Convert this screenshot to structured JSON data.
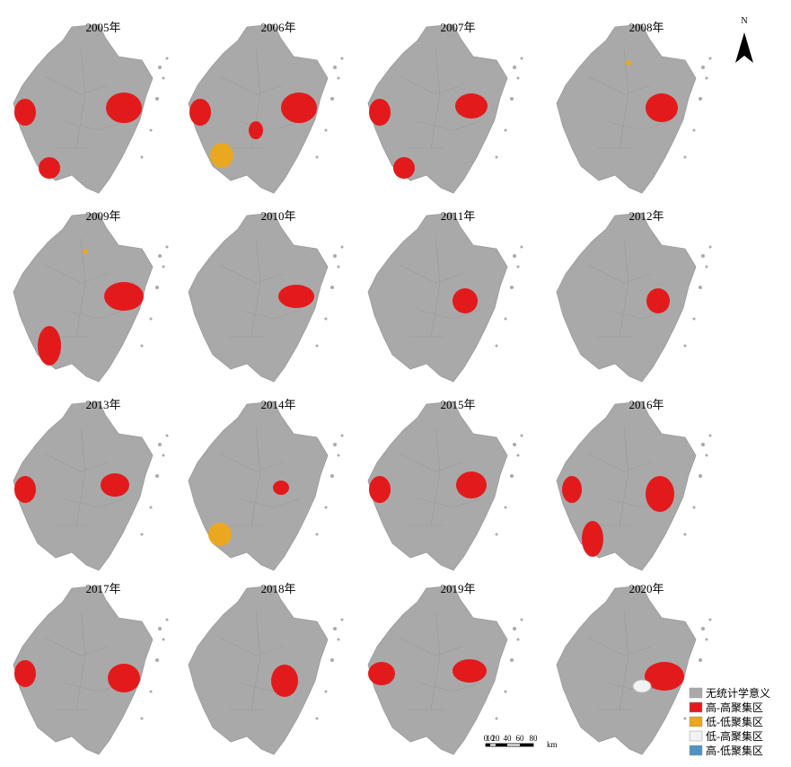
{
  "panels": [
    {
      "title": "2005年"
    },
    {
      "title": "2006年"
    },
    {
      "title": "2007年"
    },
    {
      "title": "2008年"
    },
    {
      "title": "2009年"
    },
    {
      "title": "2010年"
    },
    {
      "title": "2011年"
    },
    {
      "title": "2012年"
    },
    {
      "title": "2013年"
    },
    {
      "title": "2014年"
    },
    {
      "title": "2015年"
    },
    {
      "title": "2016年"
    },
    {
      "title": "2017年"
    },
    {
      "title": "2018年"
    },
    {
      "title": "2019年"
    },
    {
      "title": "2020年"
    }
  ],
  "legend": [
    {
      "label": "无统计学意义",
      "color": "#a9a9a9"
    },
    {
      "label": "高-高聚集区",
      "color": "#e31a1c"
    },
    {
      "label": "低-低聚集区",
      "color": "#eaa820"
    },
    {
      "label": "低-高聚集区",
      "color": "#f2f2f2"
    },
    {
      "label": "高-低聚集区",
      "color": "#4f93c0"
    }
  ],
  "north": "N",
  "scale_bar": {
    "labels": [
      "0",
      "10",
      "20",
      "40",
      "60",
      "80"
    ],
    "unit": "km"
  }
}
